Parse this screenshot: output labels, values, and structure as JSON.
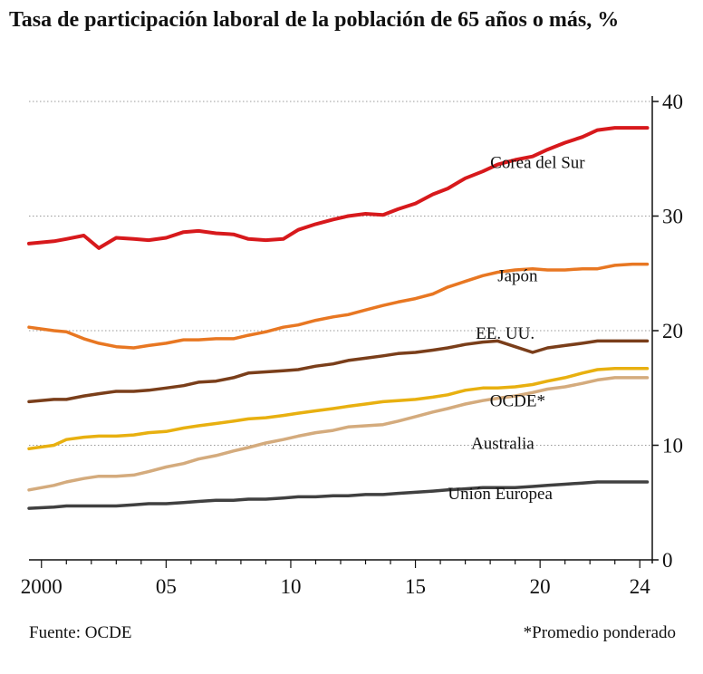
{
  "title": "Tasa de participación laboral de la población de 65 años o más, %",
  "source": "Fuente: OCDE",
  "footnote": "*Promedio ponderado",
  "chart_data": {
    "type": "line",
    "xlim": [
      1999.5,
      2024.5
    ],
    "ylim": [
      0,
      40
    ],
    "yticks": [
      0,
      10,
      20,
      30,
      40
    ],
    "xticks": [
      2000,
      2005,
      2010,
      2015,
      2020,
      2024
    ],
    "xtick_labels": [
      "2000",
      "05",
      "10",
      "15",
      "20",
      "24"
    ],
    "grid": true,
    "y_axis_side": "right",
    "series": [
      {
        "name": "Corea del Sur",
        "color": "#d7191c",
        "x": [
          1999.5,
          2000.5,
          2001,
          2001.7,
          2002.3,
          2003,
          2003.7,
          2004.3,
          2005,
          2005.7,
          2006.3,
          2007,
          2007.7,
          2008.3,
          2009,
          2009.7,
          2010.3,
          2011,
          2011.7,
          2012.3,
          2013,
          2013.7,
          2014.3,
          2015,
          2015.7,
          2016.3,
          2017,
          2017.7,
          2018.3,
          2019,
          2019.7,
          2020.3,
          2021,
          2021.7,
          2022.3,
          2023,
          2023.7,
          2024.3
        ],
        "y": [
          27.6,
          27.8,
          28.0,
          28.3,
          27.2,
          28.1,
          28.0,
          27.9,
          28.1,
          28.6,
          28.7,
          28.5,
          28.4,
          28.0,
          27.9,
          28.0,
          28.8,
          29.3,
          29.7,
          30.0,
          30.2,
          30.1,
          30.6,
          31.1,
          31.9,
          32.4,
          33.3,
          33.9,
          34.5,
          34.9,
          35.2,
          35.8,
          36.4,
          36.9,
          37.5,
          37.7,
          37.7,
          37.7
        ]
      },
      {
        "name": "Japón",
        "color": "#e87722",
        "x": [
          1999.5,
          2000.5,
          2001,
          2001.7,
          2002.3,
          2003,
          2003.7,
          2004.3,
          2005,
          2005.7,
          2006.3,
          2007,
          2007.7,
          2008.3,
          2009,
          2009.7,
          2010.3,
          2011,
          2011.7,
          2012.3,
          2013,
          2013.7,
          2014.3,
          2015,
          2015.7,
          2016.3,
          2017,
          2017.7,
          2018.3,
          2019,
          2019.7,
          2020.3,
          2021,
          2021.7,
          2022.3,
          2023,
          2023.7,
          2024.3
        ],
        "y": [
          20.3,
          20.0,
          19.9,
          19.3,
          18.9,
          18.6,
          18.5,
          18.7,
          18.9,
          19.2,
          19.2,
          19.3,
          19.3,
          19.6,
          19.9,
          20.3,
          20.5,
          20.9,
          21.2,
          21.4,
          21.8,
          22.2,
          22.5,
          22.8,
          23.2,
          23.8,
          24.3,
          24.8,
          25.1,
          25.3,
          25.4,
          25.3,
          25.3,
          25.4,
          25.4,
          25.7,
          25.8,
          25.8
        ]
      },
      {
        "name": "EE. UU.",
        "color": "#7a3e1a",
        "x": [
          1999.5,
          2000.5,
          2001,
          2001.7,
          2002.3,
          2003,
          2003.7,
          2004.3,
          2005,
          2005.7,
          2006.3,
          2007,
          2007.7,
          2008.3,
          2009,
          2009.7,
          2010.3,
          2011,
          2011.7,
          2012.3,
          2013,
          2013.7,
          2014.3,
          2015,
          2015.7,
          2016.3,
          2017,
          2017.7,
          2018.3,
          2019,
          2019.7,
          2020.3,
          2021,
          2021.7,
          2022.3,
          2023,
          2023.7,
          2024.3
        ],
        "y": [
          13.8,
          14.0,
          14.0,
          14.3,
          14.5,
          14.7,
          14.7,
          14.8,
          15.0,
          15.2,
          15.5,
          15.6,
          15.9,
          16.3,
          16.4,
          16.5,
          16.6,
          16.9,
          17.1,
          17.4,
          17.6,
          17.8,
          18.0,
          18.1,
          18.3,
          18.5,
          18.8,
          19.0,
          19.1,
          18.6,
          18.1,
          18.5,
          18.7,
          18.9,
          19.1,
          19.1,
          19.1,
          19.1
        ]
      },
      {
        "name": "OCDE*",
        "color": "#e8b010",
        "x": [
          1999.5,
          2000.5,
          2001,
          2001.7,
          2002.3,
          2003,
          2003.7,
          2004.3,
          2005,
          2005.7,
          2006.3,
          2007,
          2007.7,
          2008.3,
          2009,
          2009.7,
          2010.3,
          2011,
          2011.7,
          2012.3,
          2013,
          2013.7,
          2014.3,
          2015,
          2015.7,
          2016.3,
          2017,
          2017.7,
          2018.3,
          2019,
          2019.7,
          2020.3,
          2021,
          2021.7,
          2022.3,
          2023,
          2023.7,
          2024.3
        ],
        "y": [
          9.7,
          10.0,
          10.5,
          10.7,
          10.8,
          10.8,
          10.9,
          11.1,
          11.2,
          11.5,
          11.7,
          11.9,
          12.1,
          12.3,
          12.4,
          12.6,
          12.8,
          13.0,
          13.2,
          13.4,
          13.6,
          13.8,
          13.9,
          14.0,
          14.2,
          14.4,
          14.8,
          15.0,
          15.0,
          15.1,
          15.3,
          15.6,
          15.9,
          16.3,
          16.6,
          16.7,
          16.7,
          16.7
        ]
      },
      {
        "name": "Australia",
        "color": "#d4ab7d",
        "x": [
          1999.5,
          2000.5,
          2001,
          2001.7,
          2002.3,
          2003,
          2003.7,
          2004.3,
          2005,
          2005.7,
          2006.3,
          2007,
          2007.7,
          2008.3,
          2009,
          2009.7,
          2010.3,
          2011,
          2011.7,
          2012.3,
          2013,
          2013.7,
          2014.3,
          2015,
          2015.7,
          2016.3,
          2017,
          2017.7,
          2018.3,
          2019,
          2019.7,
          2020.3,
          2021,
          2021.7,
          2022.3,
          2023,
          2023.7,
          2024.3
        ],
        "y": [
          6.1,
          6.5,
          6.8,
          7.1,
          7.3,
          7.3,
          7.4,
          7.7,
          8.1,
          8.4,
          8.8,
          9.1,
          9.5,
          9.8,
          10.2,
          10.5,
          10.8,
          11.1,
          11.3,
          11.6,
          11.7,
          11.8,
          12.1,
          12.5,
          12.9,
          13.2,
          13.6,
          13.9,
          14.1,
          14.3,
          14.6,
          14.9,
          15.1,
          15.4,
          15.7,
          15.9,
          15.9,
          15.9
        ]
      },
      {
        "name": "Unión Europea",
        "color": "#404040",
        "x": [
          1999.5,
          2000.5,
          2001,
          2001.7,
          2002.3,
          2003,
          2003.7,
          2004.3,
          2005,
          2005.7,
          2006.3,
          2007,
          2007.7,
          2008.3,
          2009,
          2009.7,
          2010.3,
          2011,
          2011.7,
          2012.3,
          2013,
          2013.7,
          2014.3,
          2015,
          2015.7,
          2016.3,
          2017,
          2017.7,
          2018.3,
          2019,
          2019.7,
          2020.3,
          2021,
          2021.7,
          2022.3,
          2023,
          2023.7,
          2024.3
        ],
        "y": [
          4.5,
          4.6,
          4.7,
          4.7,
          4.7,
          4.7,
          4.8,
          4.9,
          4.9,
          5.0,
          5.1,
          5.2,
          5.2,
          5.3,
          5.3,
          5.4,
          5.5,
          5.5,
          5.6,
          5.6,
          5.7,
          5.7,
          5.8,
          5.9,
          6.0,
          6.1,
          6.2,
          6.3,
          6.3,
          6.3,
          6.4,
          6.5,
          6.6,
          6.7,
          6.8,
          6.8,
          6.8,
          6.8
        ]
      }
    ],
    "labels": [
      {
        "text": "Corea del Sur",
        "series": "Corea del Sur",
        "x": 2019.9,
        "y": 34.2
      },
      {
        "text": "Japón",
        "series": "Japón",
        "x": 2019.1,
        "y": 24.3
      },
      {
        "text": "EE. UU.",
        "series": "EE. UU.",
        "x": 2018.6,
        "y": 19.3
      },
      {
        "text": "OCDE*",
        "series": "OCDE*",
        "x": 2019.1,
        "y": 13.4
      },
      {
        "text": "Australia",
        "series": "Australia",
        "x": 2018.5,
        "y": 9.7
      },
      {
        "text": "Unión Europea",
        "series": "Unión Europea",
        "x": 2018.4,
        "y": 5.3
      }
    ]
  }
}
